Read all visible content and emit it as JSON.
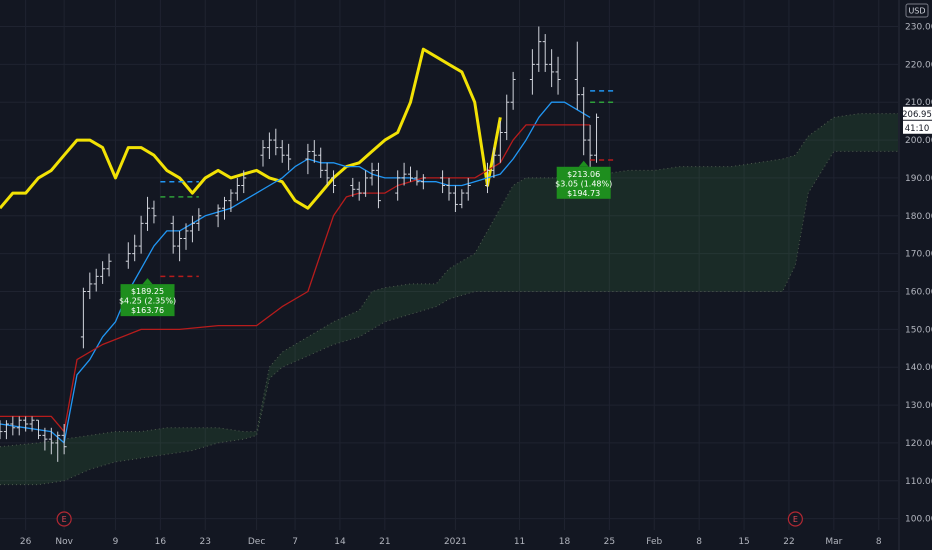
{
  "currency_label": "USD",
  "chart_data": {
    "type": "candlestick",
    "ylim": [
      97,
      237
    ],
    "y_ticks": [
      100,
      110,
      120,
      130,
      140,
      150,
      160,
      170,
      180,
      190,
      200,
      210,
      220,
      230
    ],
    "y_tick_labels": [
      "100.00",
      "110.00",
      "120.00",
      "130.00",
      "140.00",
      "150.00",
      "160.00",
      "170.00",
      "180.00",
      "190.00",
      "200.00",
      "210.00",
      "220.00",
      "230.00"
    ],
    "x_ticks": [
      {
        "label": "26",
        "day": 0
      },
      {
        "label": "Nov",
        "day": 6
      },
      {
        "label": "9",
        "day": 14
      },
      {
        "label": "16",
        "day": 21
      },
      {
        "label": "23",
        "day": 28
      },
      {
        "label": "Dec",
        "day": 36
      },
      {
        "label": "7",
        "day": 42
      },
      {
        "label": "14",
        "day": 49
      },
      {
        "label": "21",
        "day": 56
      },
      {
        "label": "2021",
        "day": 67
      },
      {
        "label": "11",
        "day": 77
      },
      {
        "label": "18",
        "day": 84
      },
      {
        "label": "25",
        "day": 91
      },
      {
        "label": "Feb",
        "day": 98
      },
      {
        "label": "8",
        "day": 105
      },
      {
        "label": "15",
        "day": 112
      },
      {
        "label": "22",
        "day": 119
      },
      {
        "label": "Mar",
        "day": 126
      },
      {
        "label": "8",
        "day": 133
      }
    ],
    "x_range": [
      -4,
      136
    ],
    "earnings_markers": [
      {
        "day": 6,
        "label": "E"
      },
      {
        "day": 120,
        "label": "E"
      }
    ],
    "ohlc": [
      [
        -4,
        124,
        126,
        121,
        123
      ],
      [
        -3,
        123,
        126,
        121,
        125
      ],
      [
        -2,
        125,
        127,
        122,
        124
      ],
      [
        -1,
        124,
        127,
        122,
        126
      ],
      [
        0,
        126,
        127,
        123,
        125
      ],
      [
        1,
        125,
        127,
        123,
        126
      ],
      [
        2,
        126,
        126,
        121,
        122
      ],
      [
        3,
        122,
        124,
        118,
        121
      ],
      [
        4,
        121,
        124,
        117,
        120
      ],
      [
        5,
        120,
        123,
        115,
        122
      ],
      [
        6,
        122,
        125,
        117,
        119
      ],
      [
        9,
        148,
        161,
        145,
        160
      ],
      [
        10,
        160,
        165,
        158,
        162
      ],
      [
        11,
        162,
        166,
        160,
        164
      ],
      [
        12,
        164,
        168,
        162,
        166
      ],
      [
        13,
        166,
        170,
        164,
        168
      ],
      [
        16,
        168,
        173,
        166,
        170
      ],
      [
        17,
        170,
        175,
        168,
        172
      ],
      [
        18,
        172,
        180,
        170,
        178
      ],
      [
        19,
        178,
        185,
        176,
        182
      ],
      [
        20,
        182,
        184,
        178,
        180
      ],
      [
        23,
        178,
        180,
        170,
        172
      ],
      [
        24,
        172,
        176,
        168,
        174
      ],
      [
        25,
        174,
        178,
        171,
        176
      ],
      [
        26,
        176,
        180,
        173,
        178
      ],
      [
        27,
        178,
        182,
        176,
        180
      ],
      [
        30,
        180,
        183,
        177,
        182
      ],
      [
        31,
        182,
        185,
        179,
        184
      ],
      [
        32,
        184,
        187,
        181,
        186
      ],
      [
        33,
        186,
        190,
        184,
        188
      ],
      [
        34,
        188,
        192,
        186,
        190
      ],
      [
        37,
        196,
        200,
        193,
        198
      ],
      [
        38,
        198,
        202,
        195,
        200
      ],
      [
        39,
        200,
        203,
        196,
        198
      ],
      [
        40,
        198,
        200,
        194,
        196
      ],
      [
        41,
        196,
        199,
        192,
        195
      ],
      [
        44,
        195,
        199,
        191,
        197
      ],
      [
        45,
        197,
        200,
        194,
        196
      ],
      [
        46,
        196,
        198,
        190,
        192
      ],
      [
        47,
        192,
        194,
        188,
        190
      ],
      [
        48,
        190,
        192,
        186,
        188
      ],
      [
        51,
        188,
        190,
        185,
        187
      ],
      [
        52,
        187,
        189,
        184,
        186
      ],
      [
        53,
        186,
        192,
        185,
        190
      ],
      [
        54,
        190,
        194,
        188,
        192
      ],
      [
        55,
        192,
        194,
        182,
        184
      ],
      [
        58,
        186,
        192,
        184,
        190
      ],
      [
        59,
        190,
        194,
        188,
        191
      ],
      [
        60,
        191,
        193,
        189,
        190
      ],
      [
        61,
        190,
        192,
        188,
        189
      ],
      [
        62,
        189,
        191,
        187,
        190
      ],
      [
        65,
        190,
        192,
        186,
        188
      ],
      [
        66,
        188,
        190,
        184,
        186
      ],
      [
        67,
        186,
        188,
        181,
        183
      ],
      [
        68,
        183,
        187,
        182,
        186
      ],
      [
        69,
        186,
        190,
        184,
        188
      ],
      [
        72,
        188,
        194,
        186,
        192
      ],
      [
        73,
        192,
        198,
        190,
        196
      ],
      [
        74,
        196,
        205,
        194,
        202
      ],
      [
        75,
        202,
        212,
        200,
        210
      ],
      [
        76,
        210,
        218,
        208,
        216
      ],
      [
        79,
        216,
        224,
        212,
        220
      ],
      [
        80,
        220,
        230,
        218,
        226
      ],
      [
        81,
        226,
        228,
        218,
        220
      ],
      [
        82,
        220,
        224,
        214,
        218
      ],
      [
        83,
        218,
        222,
        212,
        216
      ],
      [
        86,
        216,
        226,
        208,
        212
      ],
      [
        87,
        212,
        214,
        196,
        200
      ],
      [
        88,
        200,
        204,
        192,
        196
      ],
      [
        89,
        196,
        207,
        194,
        206
      ]
    ],
    "series": [
      {
        "name": "",
        "color": "#f2e205",
        "width": 3,
        "points": [
          [
            -4,
            182
          ],
          [
            -2,
            186
          ],
          [
            0,
            186
          ],
          [
            2,
            190
          ],
          [
            4,
            192
          ],
          [
            6,
            196
          ],
          [
            8,
            200
          ],
          [
            10,
            200
          ],
          [
            12,
            198
          ],
          [
            14,
            190
          ],
          [
            16,
            198
          ],
          [
            18,
            198
          ],
          [
            20,
            196
          ],
          [
            22,
            192
          ],
          [
            24,
            190
          ],
          [
            26,
            186
          ],
          [
            28,
            190
          ],
          [
            30,
            192
          ],
          [
            32,
            190
          ],
          [
            34,
            191
          ],
          [
            36,
            192
          ],
          [
            38,
            190
          ],
          [
            40,
            189
          ],
          [
            42,
            184
          ],
          [
            44,
            182
          ],
          [
            46,
            186
          ],
          [
            48,
            190
          ],
          [
            50,
            193
          ],
          [
            52,
            194
          ],
          [
            54,
            197
          ],
          [
            56,
            200
          ],
          [
            58,
            202
          ],
          [
            60,
            210
          ],
          [
            62,
            224
          ],
          [
            64,
            222
          ],
          [
            66,
            220
          ],
          [
            68,
            218
          ],
          [
            70,
            210
          ],
          [
            72,
            188
          ],
          [
            74,
            206
          ]
        ]
      },
      {
        "name": "",
        "color": "#2196f3",
        "width": 1.3,
        "points": [
          [
            -4,
            125
          ],
          [
            0,
            124
          ],
          [
            4,
            123
          ],
          [
            6,
            120
          ],
          [
            8,
            138
          ],
          [
            10,
            142
          ],
          [
            12,
            148
          ],
          [
            14,
            152
          ],
          [
            16,
            160
          ],
          [
            18,
            166
          ],
          [
            20,
            172
          ],
          [
            22,
            176
          ],
          [
            24,
            176
          ],
          [
            26,
            178
          ],
          [
            28,
            180
          ],
          [
            30,
            181
          ],
          [
            32,
            182
          ],
          [
            34,
            184
          ],
          [
            36,
            186
          ],
          [
            38,
            188
          ],
          [
            40,
            190
          ],
          [
            42,
            193
          ],
          [
            44,
            195
          ],
          [
            46,
            194
          ],
          [
            48,
            194
          ],
          [
            50,
            193
          ],
          [
            52,
            193
          ],
          [
            54,
            191
          ],
          [
            56,
            190
          ],
          [
            58,
            190
          ],
          [
            60,
            190
          ],
          [
            62,
            189
          ],
          [
            64,
            189
          ],
          [
            66,
            188
          ],
          [
            68,
            188
          ],
          [
            70,
            189
          ],
          [
            72,
            190
          ],
          [
            74,
            191
          ],
          [
            76,
            195
          ],
          [
            78,
            200
          ],
          [
            80,
            206
          ],
          [
            82,
            210
          ],
          [
            84,
            210
          ],
          [
            86,
            208
          ],
          [
            88,
            206
          ]
        ]
      },
      {
        "name": "",
        "color": "#b71c1c",
        "width": 1.3,
        "points": [
          [
            -4,
            127
          ],
          [
            4,
            127
          ],
          [
            6,
            123
          ],
          [
            8,
            142
          ],
          [
            12,
            146
          ],
          [
            18,
            150
          ],
          [
            24,
            150
          ],
          [
            30,
            151
          ],
          [
            36,
            151
          ],
          [
            40,
            156
          ],
          [
            44,
            160
          ],
          [
            46,
            170
          ],
          [
            48,
            180
          ],
          [
            50,
            185
          ],
          [
            52,
            186
          ],
          [
            56,
            186
          ],
          [
            58,
            188
          ],
          [
            60,
            189
          ],
          [
            62,
            190
          ],
          [
            64,
            190
          ],
          [
            66,
            190
          ],
          [
            70,
            190
          ],
          [
            74,
            194
          ],
          [
            76,
            200
          ],
          [
            78,
            204
          ],
          [
            82,
            204
          ],
          [
            86,
            204
          ],
          [
            88,
            204
          ]
        ]
      }
    ],
    "cloud": {
      "color": "#4caf50",
      "upper": [
        [
          -4,
          119
        ],
        [
          2,
          120
        ],
        [
          6,
          121
        ],
        [
          10,
          122
        ],
        [
          14,
          123
        ],
        [
          18,
          123
        ],
        [
          22,
          124
        ],
        [
          26,
          124
        ],
        [
          30,
          124
        ],
        [
          34,
          123
        ],
        [
          36,
          123
        ],
        [
          38,
          140
        ],
        [
          40,
          144
        ],
        [
          44,
          148
        ],
        [
          48,
          152
        ],
        [
          52,
          155
        ],
        [
          54,
          160
        ],
        [
          56,
          161
        ],
        [
          60,
          162
        ],
        [
          64,
          162
        ],
        [
          66,
          166
        ],
        [
          70,
          170
        ],
        [
          72,
          176
        ],
        [
          74,
          182
        ],
        [
          76,
          188
        ],
        [
          78,
          190
        ],
        [
          82,
          190
        ],
        [
          86,
          190
        ],
        [
          90,
          191
        ],
        [
          94,
          192
        ],
        [
          98,
          192
        ],
        [
          102,
          193
        ],
        [
          106,
          193
        ],
        [
          110,
          193
        ],
        [
          114,
          194
        ],
        [
          118,
          195
        ],
        [
          120,
          196
        ],
        [
          122,
          201
        ],
        [
          126,
          206
        ],
        [
          130,
          207
        ],
        [
          134,
          207
        ],
        [
          136,
          207
        ]
      ],
      "lower": [
        [
          -4,
          109
        ],
        [
          2,
          109
        ],
        [
          6,
          110
        ],
        [
          10,
          113
        ],
        [
          14,
          115
        ],
        [
          18,
          116
        ],
        [
          22,
          117
        ],
        [
          26,
          118
        ],
        [
          30,
          120
        ],
        [
          34,
          121
        ],
        [
          36,
          122
        ],
        [
          38,
          137
        ],
        [
          40,
          140
        ],
        [
          44,
          143
        ],
        [
          48,
          146
        ],
        [
          52,
          148
        ],
        [
          54,
          150
        ],
        [
          56,
          152
        ],
        [
          60,
          154
        ],
        [
          64,
          156
        ],
        [
          66,
          158
        ],
        [
          70,
          160
        ],
        [
          72,
          160
        ],
        [
          74,
          160
        ],
        [
          76,
          160
        ],
        [
          78,
          160
        ],
        [
          82,
          160
        ],
        [
          86,
          160
        ],
        [
          90,
          160
        ],
        [
          94,
          160
        ],
        [
          98,
          160
        ],
        [
          102,
          160
        ],
        [
          106,
          160
        ],
        [
          110,
          160
        ],
        [
          114,
          160
        ],
        [
          118,
          160
        ],
        [
          120,
          167
        ],
        [
          122,
          186
        ],
        [
          126,
          197
        ],
        [
          130,
          197
        ],
        [
          134,
          197
        ],
        [
          136,
          197
        ]
      ]
    },
    "level_lines": [
      {
        "day_start": 21,
        "day_end": 27,
        "value": 164,
        "color": "#b71c1c",
        "dash": true
      },
      {
        "day_start": 21,
        "day_end": 27,
        "value": 185,
        "color": "#2e9f3a",
        "dash": true
      },
      {
        "day_start": 21,
        "day_end": 27,
        "value": 189,
        "color": "#2196f3",
        "dash": true
      },
      {
        "day_start": 88,
        "day_end": 92,
        "value": 194.73,
        "color": "#b71c1c",
        "dash": true
      },
      {
        "day_start": 88,
        "day_end": 92,
        "value": 210,
        "color": "#2e9f3a",
        "dash": true
      },
      {
        "day_start": 88,
        "day_end": 92,
        "value": 213,
        "color": "#2196f3",
        "dash": true
      }
    ],
    "callouts": [
      {
        "day": 19,
        "value": 163,
        "lines": [
          "$189.25",
          "$4.25 (2.35%)",
          "$163.76"
        ],
        "color": "#1e8e1e"
      },
      {
        "day": 87,
        "value": 194,
        "lines": [
          "$213.06",
          "$3.05 (1.48%)",
          "$194.73"
        ],
        "color": "#1e8e1e"
      }
    ],
    "last_price": {
      "value": 206.95,
      "label": "206.95",
      "countdown": "41:10"
    }
  }
}
